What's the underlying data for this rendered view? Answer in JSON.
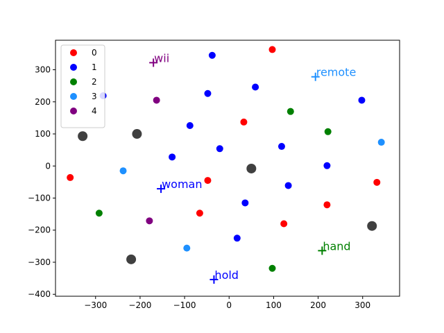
{
  "chart_data": {
    "type": "scatter",
    "title": "",
    "xlabel": "",
    "ylabel": "",
    "xlim": [
      -390,
      383
    ],
    "ylim": [
      -406,
      392
    ],
    "xticks": [
      -300,
      -200,
      -100,
      0,
      100,
      200,
      300
    ],
    "yticks": [
      -400,
      -300,
      -200,
      -100,
      0,
      100,
      200,
      300
    ],
    "grid": false,
    "legend_position": "top-left",
    "series": [
      {
        "name": "0",
        "color": "#ff0000",
        "points": [
          [
            97,
            363
          ],
          [
            33,
            137
          ],
          [
            -48,
            -45
          ],
          [
            -66,
            -147
          ],
          [
            123,
            -180
          ],
          [
            220,
            -121
          ],
          [
            332,
            -51
          ],
          [
            -357,
            -36
          ]
        ]
      },
      {
        "name": "1",
        "color": "#0000ff",
        "points": [
          [
            -38,
            345
          ],
          [
            -283,
            219
          ],
          [
            -48,
            226
          ],
          [
            59,
            246
          ],
          [
            298,
            205
          ],
          [
            -88,
            126
          ],
          [
            -21,
            54
          ],
          [
            -128,
            28
          ],
          [
            118,
            61
          ],
          [
            220,
            1
          ],
          [
            133,
            -61
          ],
          [
            36,
            -115
          ],
          [
            18,
            -225
          ]
        ]
      },
      {
        "name": "2",
        "color": "#008000",
        "points": [
          [
            138,
            170
          ],
          [
            222,
            107
          ],
          [
            -292,
            -147
          ],
          [
            97,
            -319
          ]
        ]
      },
      {
        "name": "3",
        "color": "#1e90ff",
        "points": [
          [
            342,
            74
          ],
          [
            -238,
            -15
          ],
          [
            -95,
            -256
          ]
        ]
      },
      {
        "name": "4",
        "color": "#800080",
        "points": [
          [
            -163,
            205
          ],
          [
            -179,
            -171
          ]
        ]
      }
    ],
    "gray_points": {
      "color": "#404040",
      "points": [
        [
          -329,
          93
        ],
        [
          -207,
          100
        ],
        [
          50,
          -8
        ],
        [
          -220,
          -291
        ],
        [
          321,
          -187
        ]
      ]
    },
    "annotations": [
      {
        "text": "wii",
        "color": "#800080",
        "x": -170,
        "y": 322
      },
      {
        "text": "remote",
        "color": "#1e90ff",
        "x": 194,
        "y": 278
      },
      {
        "text": "woman",
        "color": "#0000ff",
        "x": -153,
        "y": -71
      },
      {
        "text": "hand",
        "color": "#008000",
        "x": 209,
        "y": -264
      },
      {
        "text": "hold",
        "color": "#0000ff",
        "x": -34,
        "y": -354
      }
    ]
  }
}
